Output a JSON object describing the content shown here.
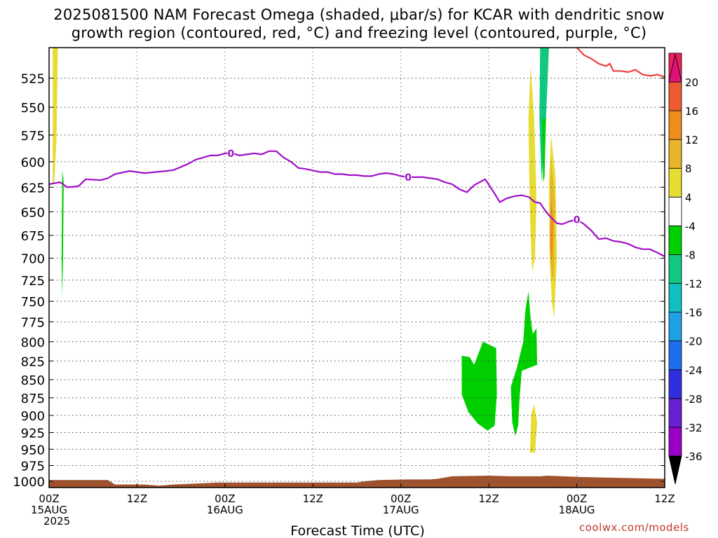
{
  "title_lines": [
    "2025081500 NAM Forecast Omega (shaded, μbar/s) for KCAR with dendritic snow",
    "growth region (contoured, red, °C) and freezing level (contoured, purple, °C)"
  ],
  "credit": "coolwx.com/models",
  "chart_data": {
    "type": "time-height cross section",
    "xlabel": "Forecast Time (UTC)",
    "x_range_hours": [
      0,
      84
    ],
    "x_ticks": [
      {
        "hour": 0,
        "line1": "00Z",
        "line2": "15AUG",
        "line3": "2025"
      },
      {
        "hour": 12,
        "line1": "12Z",
        "line2": "",
        "line3": ""
      },
      {
        "hour": 24,
        "line1": "00Z",
        "line2": "16AUG",
        "line3": ""
      },
      {
        "hour": 36,
        "line1": "12Z",
        "line2": "",
        "line3": ""
      },
      {
        "hour": 48,
        "line1": "00Z",
        "line2": "17AUG",
        "line3": ""
      },
      {
        "hour": 60,
        "line1": "12Z",
        "line2": "",
        "line3": ""
      },
      {
        "hour": 72,
        "line1": "00Z",
        "line2": "18AUG",
        "line3": ""
      },
      {
        "hour": 84,
        "line1": "12Z",
        "line2": "",
        "line3": ""
      }
    ],
    "y_axis": "pressure (hPa), logarithmic, reversed",
    "y_range_hpa": [
      500,
      1010
    ],
    "y_ticks": [
      525,
      550,
      575,
      600,
      625,
      650,
      675,
      700,
      725,
      750,
      775,
      800,
      825,
      850,
      875,
      900,
      925,
      950,
      975,
      1000
    ],
    "grid": true,
    "colorbar": {
      "levels": [
        -36,
        -32,
        -28,
        -24,
        -20,
        -16,
        -12,
        -8,
        -4,
        4,
        8,
        12,
        16,
        20
      ],
      "labels": [
        "-36",
        "-32",
        "-28",
        "-24",
        "-20",
        "-16",
        "-12",
        "-8",
        "-4",
        "4",
        "8",
        "12",
        "16",
        "20"
      ],
      "colors": [
        "#a0a0a0",
        "#9b00c8",
        "#6a1fd0",
        "#2f2fe0",
        "#1e6ff0",
        "#1ea0e6",
        "#10c0c0",
        "#10c880",
        "#00d000",
        "#ffffff",
        "#e6dc32",
        "#e8b428",
        "#f08c1e",
        "#f05a32",
        "#f01e5a"
      ],
      "under_color": "#000000",
      "over_color": "#e0127a"
    },
    "omega_regions": [
      {
        "value": 6,
        "color": "#e6dc32",
        "points": [
          [
            0.5,
            500
          ],
          [
            1.2,
            500
          ],
          [
            1.0,
            580
          ],
          [
            0.7,
            622
          ],
          [
            0.5,
            622
          ]
        ]
      },
      {
        "value": -6,
        "color": "#00d000",
        "points": [
          [
            1.8,
            608
          ],
          [
            2.0,
            620
          ],
          [
            1.9,
            700
          ],
          [
            1.8,
            745
          ],
          [
            1.7,
            700
          ]
        ]
      },
      {
        "value": 6,
        "color": "#e6dc32",
        "points": [
          [
            65.7,
            515
          ],
          [
            66.2,
            560
          ],
          [
            66.5,
            640
          ],
          [
            66.3,
            700
          ],
          [
            65.9,
            715
          ],
          [
            65.6,
            650
          ],
          [
            65.4,
            560
          ]
        ]
      },
      {
        "value": -10,
        "color": "#10c880",
        "points": [
          [
            67.0,
            500
          ],
          [
            68.2,
            500
          ],
          [
            67.8,
            560
          ],
          [
            67.2,
            620
          ],
          [
            66.9,
            560
          ]
        ]
      },
      {
        "value": -6,
        "color": "#00d000",
        "points": [
          [
            67.3,
            560
          ],
          [
            67.8,
            560
          ],
          [
            67.6,
            615
          ],
          [
            67.4,
            620
          ]
        ]
      },
      {
        "value": 6,
        "color": "#e6dc32",
        "points": [
          [
            68.5,
            575
          ],
          [
            69.1,
            615
          ],
          [
            69.3,
            700
          ],
          [
            68.9,
            770
          ],
          [
            68.6,
            750
          ],
          [
            68.3,
            700
          ],
          [
            68.2,
            620
          ]
        ]
      },
      {
        "value": 10,
        "color": "#e8b428",
        "points": [
          [
            68.5,
            595
          ],
          [
            69.0,
            640
          ],
          [
            68.9,
            720
          ],
          [
            68.6,
            725
          ],
          [
            68.3,
            680
          ],
          [
            68.4,
            620
          ]
        ]
      },
      {
        "value": 14,
        "color": "#f08c1e",
        "points": [
          [
            68.5,
            635
          ],
          [
            68.8,
            660
          ],
          [
            68.6,
            710
          ],
          [
            68.4,
            690
          ]
        ]
      },
      {
        "value": -6,
        "color": "#00d000",
        "points": [
          [
            56.3,
            818
          ],
          [
            57.4,
            820
          ],
          [
            58.0,
            830
          ],
          [
            59.2,
            800
          ],
          [
            61.0,
            808
          ],
          [
            61.1,
            870
          ],
          [
            60.8,
            915
          ],
          [
            59.8,
            922
          ],
          [
            58.5,
            912
          ],
          [
            57.2,
            895
          ],
          [
            56.3,
            870
          ]
        ]
      },
      {
        "value": -6,
        "color": "#00d000",
        "points": [
          [
            63.0,
            860
          ],
          [
            63.8,
            835
          ],
          [
            64.7,
            800
          ],
          [
            65.0,
            760
          ],
          [
            65.4,
            738
          ],
          [
            65.7,
            770
          ],
          [
            66.0,
            790
          ],
          [
            66.5,
            783
          ],
          [
            66.6,
            830
          ],
          [
            64.5,
            838
          ],
          [
            64.2,
            875
          ],
          [
            64.0,
            915
          ],
          [
            63.6,
            930
          ],
          [
            63.2,
            910
          ]
        ]
      },
      {
        "value": 6,
        "color": "#e6dc32",
        "points": [
          [
            65.8,
            897
          ],
          [
            66.2,
            885
          ],
          [
            66.6,
            910
          ],
          [
            66.3,
            955
          ],
          [
            65.6,
            955
          ],
          [
            65.7,
            925
          ]
        ]
      }
    ],
    "freezing_level": {
      "label": "0",
      "color": "#a010c8",
      "label_hours": [
        24.8,
        49.0,
        72.0
      ],
      "points": [
        [
          0,
          622
        ],
        [
          1.5,
          620
        ],
        [
          2.5,
          625
        ],
        [
          4,
          624
        ],
        [
          5,
          617
        ],
        [
          7,
          618
        ],
        [
          8,
          616
        ],
        [
          9,
          612
        ],
        [
          11,
          609
        ],
        [
          13,
          611
        ],
        [
          16,
          609
        ],
        [
          17,
          608
        ],
        [
          18,
          605
        ],
        [
          19,
          602
        ],
        [
          20,
          598
        ],
        [
          21,
          596
        ],
        [
          22,
          594
        ],
        [
          23,
          594
        ],
        [
          24,
          592
        ],
        [
          25,
          592
        ],
        [
          26,
          594
        ],
        [
          27,
          593
        ],
        [
          28,
          592
        ],
        [
          29,
          593
        ],
        [
          30,
          590
        ],
        [
          31,
          590
        ],
        [
          32,
          596
        ],
        [
          33,
          600
        ],
        [
          34,
          606
        ],
        [
          35,
          607
        ],
        [
          37,
          610
        ],
        [
          38,
          610
        ],
        [
          39,
          612
        ],
        [
          40,
          612
        ],
        [
          41,
          613
        ],
        [
          42,
          613
        ],
        [
          43,
          614
        ],
        [
          44,
          614
        ],
        [
          45,
          612
        ],
        [
          46,
          611
        ],
        [
          47,
          612
        ],
        [
          48,
          614
        ],
        [
          49,
          615
        ],
        [
          50,
          615
        ],
        [
          51,
          615
        ],
        [
          52,
          616
        ],
        [
          53,
          617
        ],
        [
          54,
          620
        ],
        [
          55,
          622
        ],
        [
          56,
          627
        ],
        [
          57,
          630
        ],
        [
          58,
          623
        ],
        [
          59.5,
          617
        ],
        [
          60.5,
          628
        ],
        [
          61.5,
          640
        ],
        [
          62.5,
          636
        ],
        [
          63.5,
          634
        ],
        [
          64.5,
          633
        ],
        [
          65.5,
          635
        ],
        [
          66.3,
          640
        ],
        [
          67.0,
          641
        ],
        [
          67.8,
          650
        ],
        [
          68.5,
          656
        ],
        [
          69.3,
          662
        ],
        [
          70,
          663
        ],
        [
          71,
          660
        ],
        [
          72,
          658
        ],
        [
          73,
          663
        ],
        [
          74,
          670
        ],
        [
          75,
          679
        ],
        [
          76,
          678
        ],
        [
          77,
          681
        ],
        [
          78,
          682
        ],
        [
          79,
          684
        ],
        [
          80,
          688
        ],
        [
          81,
          690
        ],
        [
          82,
          690
        ],
        [
          83,
          694
        ],
        [
          84,
          698
        ]
      ]
    },
    "dgz_contour": {
      "color": "#f04040",
      "points": [
        [
          72.0,
          500
        ],
        [
          73.0,
          506
        ],
        [
          74.0,
          509
        ],
        [
          75.0,
          513
        ],
        [
          76.0,
          515
        ],
        [
          76.5,
          513
        ],
        [
          77.0,
          519
        ],
        [
          78.0,
          519
        ],
        [
          79.0,
          520
        ],
        [
          80.0,
          518
        ],
        [
          81.0,
          522
        ],
        [
          82.0,
          523
        ],
        [
          83.0,
          522
        ],
        [
          84.0,
          524
        ]
      ]
    },
    "surface_terrain": {
      "color": "#a0522d",
      "points": [
        [
          0,
          998
        ],
        [
          8,
          998
        ],
        [
          9,
          1005
        ],
        [
          13,
          1005
        ],
        [
          15,
          1007
        ],
        [
          17,
          1005
        ],
        [
          23,
          1002
        ],
        [
          27,
          1002
        ],
        [
          37,
          1002
        ],
        [
          38,
          1002
        ],
        [
          42,
          1002
        ],
        [
          43,
          1000
        ],
        [
          45,
          998
        ],
        [
          49,
          997
        ],
        [
          52,
          997
        ],
        [
          53,
          996
        ],
        [
          55,
          992
        ],
        [
          60,
          991
        ],
        [
          63,
          992
        ],
        [
          67,
          992
        ],
        [
          68,
          991
        ],
        [
          72,
          993
        ],
        [
          76,
          994
        ],
        [
          80,
          995
        ],
        [
          84,
          996
        ]
      ]
    }
  }
}
